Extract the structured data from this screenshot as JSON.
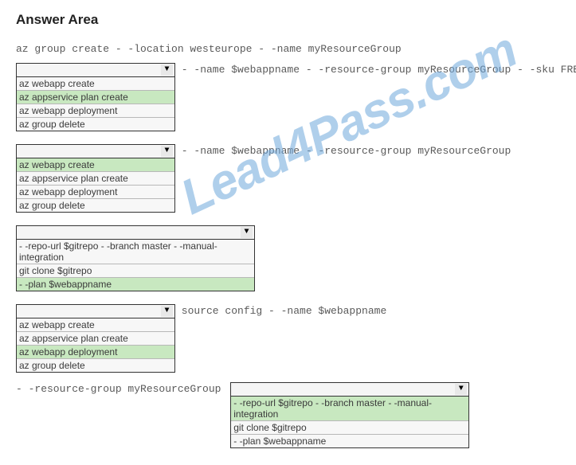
{
  "title": "Answer Area",
  "watermark": "Lead4Pass.com",
  "line1": "az group create - -location westeurope - -name myResourceGroup",
  "dd1": {
    "trail": " - -name $webappname - -resource-group myResourceGroup - -sku FREE",
    "options": [
      "az webapp create",
      "az appservice plan create",
      "az webapp deployment",
      "az group delete"
    ],
    "selected": 1
  },
  "dd2": {
    "trail": " - -name $webappname - -resource-group myResourceGroup",
    "options": [
      "az webapp create",
      "az appservice plan create",
      "az webapp deployment",
      "az group delete"
    ],
    "selected": 0
  },
  "dd3": {
    "trail": "",
    "options": [
      "- -repo-url $gitrepo - -branch master - -manual-integration",
      "git clone $gitrepo",
      "- -plan $webappname"
    ],
    "selected": 2
  },
  "dd4": {
    "trail": " source config - -name $webappname",
    "options": [
      "az webapp create",
      "az appservice plan create",
      "az webapp deployment",
      "az group delete"
    ],
    "selected": 2
  },
  "line5_pre": "- -resource-group myResourceGroup ",
  "dd5": {
    "options": [
      "- -repo-url $gitrepo - -branch master - -manual-integration",
      "git clone $gitrepo",
      "- -plan $webappname"
    ],
    "selected": 0
  }
}
